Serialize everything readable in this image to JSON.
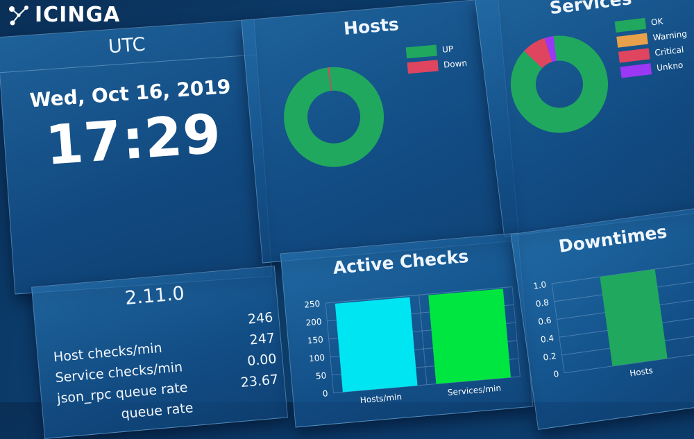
{
  "brand": {
    "name": "ICINGA"
  },
  "clock": {
    "title": "UTC",
    "date": "Wed, Oct 16, 2019",
    "time": "17:29"
  },
  "hosts": {
    "title": "Hosts",
    "legend": [
      {
        "label": "UP",
        "color": "#21a85f"
      },
      {
        "label": "Down",
        "color": "#e0455f"
      }
    ],
    "chart_data": {
      "type": "pie",
      "categories": [
        "UP",
        "Down"
      ],
      "values": [
        99.5,
        0.5
      ],
      "colors": [
        "#21a85f",
        "#e0455f"
      ]
    }
  },
  "services": {
    "title": "Services",
    "legend": [
      {
        "label": "OK",
        "color": "#21a85f"
      },
      {
        "label": "Warning",
        "color": "#e8a04a"
      },
      {
        "label": "Critical",
        "color": "#e0455f"
      },
      {
        "label": "Unkno",
        "color": "#9a38f5"
      }
    ],
    "chart_data": {
      "type": "pie",
      "categories": [
        "OK",
        "Warning",
        "Critical",
        "Unknown"
      ],
      "values": [
        89,
        0,
        8,
        3
      ],
      "colors": [
        "#21a85f",
        "#e8a04a",
        "#e0455f",
        "#9a38f5"
      ]
    }
  },
  "version": {
    "title": "2.11.0",
    "metrics": [
      {
        "label": "Host checks/min",
        "value": "246"
      },
      {
        "label": "Service checks/min",
        "value": "247"
      },
      {
        "label": "json_rpc queue rate",
        "value": "0.00"
      },
      {
        "label": "queue rate",
        "value": "23.67"
      }
    ]
  },
  "active_checks": {
    "title": "Active Checks",
    "chart_data": {
      "type": "bar",
      "categories": [
        "Hosts/min",
        "Services/min"
      ],
      "values": [
        246,
        247
      ],
      "colors": [
        "#00e5f2",
        "#00e640"
      ],
      "ylim": [
        0,
        250
      ],
      "yticks": [
        "250",
        "200",
        "150",
        "100",
        "50",
        "0"
      ]
    }
  },
  "downtimes": {
    "title": "Downtimes",
    "chart_data": {
      "type": "bar",
      "categories": [
        "Hosts"
      ],
      "values": [
        1.0
      ],
      "colors": [
        "#21a85f"
      ],
      "ylim": [
        0,
        1.0
      ],
      "yticks": [
        "1.0",
        "0.8",
        "0.6",
        "0.4",
        "0.2",
        "0"
      ]
    }
  }
}
